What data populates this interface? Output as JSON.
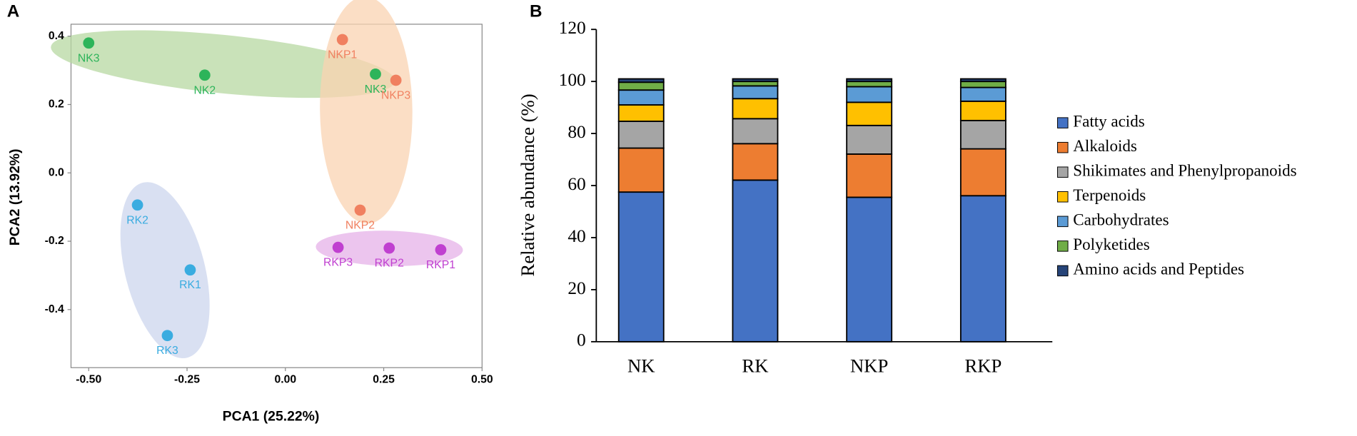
{
  "chart_data": [
    {
      "type": "scatter",
      "label": "A",
      "xlabel": "PCA1 (25.22%)",
      "ylabel": "PCA2 (13.92%)",
      "xlim": [
        -0.545,
        0.5
      ],
      "xticks": [
        {
          "value": -0.5,
          "label": "-0.50"
        },
        {
          "value": -0.25,
          "label": "-0.25"
        },
        {
          "value": 0,
          "label": "0.00"
        },
        {
          "value": 0.25,
          "label": "0.25"
        },
        {
          "value": 0.5,
          "label": "0.50"
        }
      ],
      "ylim": [
        -0.57,
        0.435
      ],
      "yticks": [
        {
          "value": 0.4,
          "label": "0.4"
        },
        {
          "value": 0.2,
          "label": "0.2"
        },
        {
          "value": 0,
          "label": "0.0"
        },
        {
          "value": -0.2,
          "label": "-0.2"
        },
        {
          "value": -0.4,
          "label": "-0.4"
        }
      ],
      "series": [
        {
          "color": "#2db45a",
          "fill": "#b7d8a2",
          "x": [
            -0.5,
            -0.205,
            0.229
          ],
          "y": [
            0.38,
            0.286,
            0.289
          ],
          "labels": [
            "NK3",
            "NK2",
            "NK3"
          ]
        },
        {
          "color": "#f08060",
          "fill": "#f9d3b2",
          "x": [
            0.145,
            0.281,
            0.19
          ],
          "y": [
            0.39,
            0.271,
            -0.109
          ],
          "labels": [
            "NKP1",
            "NKP3",
            "NKP2"
          ]
        },
        {
          "color": "#3aace0",
          "fill": "#ccd6ee",
          "x": [
            -0.376,
            -0.242,
            -0.3
          ],
          "y": [
            -0.094,
            -0.284,
            -0.476
          ],
          "labels": [
            "RK2",
            "RK1",
            "RK3"
          ]
        },
        {
          "color": "#c040d0",
          "fill": "#e6b2e8",
          "x": [
            0.134,
            0.264,
            0.395
          ],
          "y": [
            -0.218,
            -0.22,
            -0.225
          ],
          "labels": [
            "RKP3",
            "RKP2",
            "RKP1"
          ]
        }
      ]
    },
    {
      "type": "stacked_bar",
      "label": "B",
      "ylabel": "Relative abundance (%)",
      "categories": [
        "NK",
        "RK",
        "NKP",
        "RKP"
      ],
      "ylim": [
        0,
        120
      ],
      "yticks": [
        0,
        20,
        40,
        60,
        80,
        100,
        120
      ],
      "series": [
        {
          "name": "Fatty acids",
          "color": "#4472c4",
          "values": [
            57.5,
            62.1,
            55.5,
            56.1
          ]
        },
        {
          "name": "Alkaloids",
          "color": "#ed7d31",
          "values": [
            16.9,
            14.0,
            16.6,
            18.0
          ]
        },
        {
          "name": "Shikimates and Phenylpropanoids",
          "color": "#a5a5a5",
          "values": [
            10.3,
            9.6,
            11.0,
            10.9
          ]
        },
        {
          "name": "Terpenoids",
          "color": "#ffc000",
          "values": [
            6.3,
            7.7,
            8.9,
            7.4
          ]
        },
        {
          "name": "Carbohydrates",
          "color": "#5b9bd5",
          "values": [
            5.7,
            4.9,
            6.0,
            5.3
          ]
        },
        {
          "name": "Polyketides",
          "color": "#70ad47",
          "values": [
            3.0,
            1.7,
            2.0,
            2.3
          ]
        },
        {
          "name": "Amino acids and Peptides",
          "color": "#264478",
          "values": [
            1.3,
            1.0,
            1.0,
            1.0
          ]
        }
      ]
    }
  ]
}
